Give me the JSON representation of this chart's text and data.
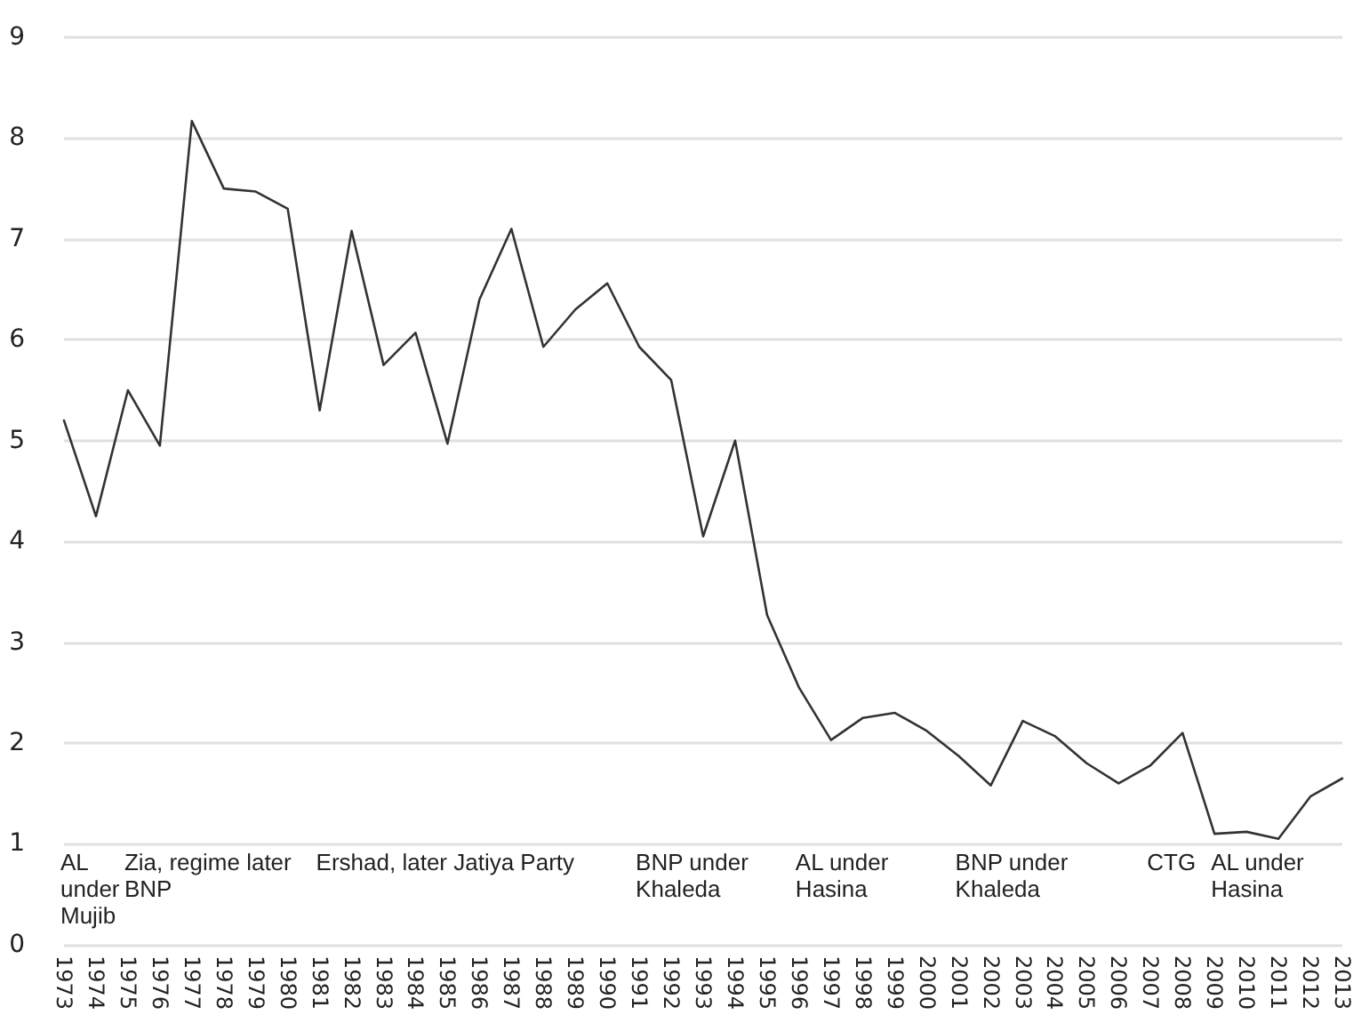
{
  "chart_data": {
    "type": "line",
    "categories": [
      "1973",
      "1974",
      "1975",
      "1976",
      "1977",
      "1978",
      "1979",
      "1980",
      "1981",
      "1982",
      "1983",
      "1984",
      "1985",
      "1986",
      "1987",
      "1988",
      "1989",
      "1990",
      "1991",
      "1992",
      "1993",
      "1994",
      "1995",
      "1996",
      "1997",
      "1998",
      "1999",
      "2000",
      "2001",
      "2002",
      "2003",
      "2004",
      "2005",
      "2006",
      "2007",
      "2008",
      "2009",
      "2010",
      "2011",
      "2012",
      "2013"
    ],
    "series": [
      {
        "color": "#333333",
        "values": [
          5.2,
          4.25,
          5.5,
          4.95,
          8.17,
          7.5,
          7.47,
          7.3,
          5.3,
          7.08,
          5.75,
          6.07,
          4.97,
          6.4,
          7.1,
          5.93,
          6.3,
          6.56,
          5.93,
          5.6,
          4.05,
          5.0,
          3.27,
          2.55,
          2.03,
          2.25,
          2.3,
          2.12,
          1.87,
          1.58,
          2.22,
          2.07,
          1.8,
          1.6,
          1.78,
          2.1,
          1.1,
          1.12,
          1.05,
          1.47,
          1.65
        ]
      }
    ],
    "ylim": [
      0,
      9
    ],
    "yticks": [
      0,
      1,
      2,
      3,
      4,
      5,
      6,
      7,
      8,
      9
    ],
    "grid": "y",
    "marker": "none",
    "line_style": "solid",
    "annotations": [
      "AL under Mujib",
      "Zia, regime later BNP",
      "Ershad, later Jatiya Party",
      "BNP under Khaleda",
      "AL under Hasina",
      "BNP under Khaleda",
      "CTG",
      "AL under Hasina"
    ]
  }
}
